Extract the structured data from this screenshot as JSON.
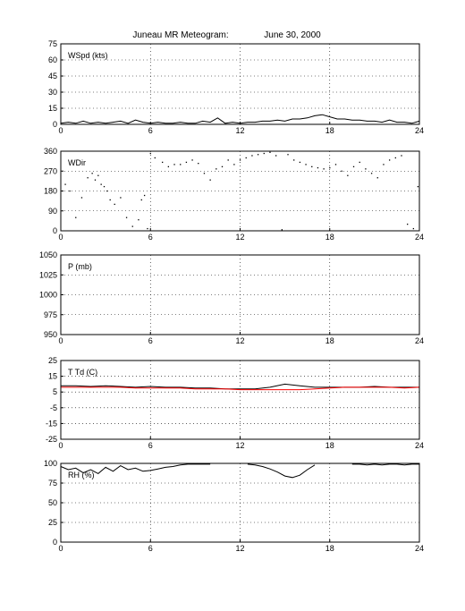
{
  "figure": {
    "title": "Juneau MR Meteogram:",
    "date": "June 30, 2000"
  },
  "chart_data": [
    {
      "type": "line",
      "label": "WSpd (kts)",
      "xlim": [
        0,
        24
      ],
      "xticks": [
        0,
        6,
        12,
        18,
        24
      ],
      "ylim": [
        0,
        75
      ],
      "yticks": [
        0,
        15,
        30,
        45,
        60,
        75
      ],
      "grid": true,
      "series": [
        {
          "color": "#000000",
          "x": [
            0,
            0.5,
            1,
            1.5,
            2,
            2.5,
            3,
            3.5,
            4,
            4.5,
            5,
            5.5,
            6,
            6.5,
            7,
            7.5,
            8,
            8.5,
            9,
            9.5,
            10,
            10.5,
            11,
            11.5,
            12,
            12.5,
            13,
            13.5,
            14,
            14.5,
            15,
            15.5,
            16,
            16.5,
            17,
            17.5,
            18,
            18.5,
            19,
            19.5,
            20,
            20.5,
            21,
            21.5,
            22,
            22.5,
            23,
            23.5,
            24
          ],
          "values": [
            1,
            2,
            1,
            3,
            1,
            2,
            1,
            2,
            3,
            1,
            4,
            2,
            1,
            2,
            1,
            1,
            2,
            1,
            1,
            3,
            2,
            6,
            1,
            2,
            1,
            2,
            2,
            3,
            3,
            4,
            3,
            5,
            5,
            6,
            8,
            9,
            7,
            5,
            5,
            4,
            4,
            3,
            3,
            2,
            4,
            2,
            2,
            1,
            3
          ]
        }
      ]
    },
    {
      "type": "scatter",
      "label": "WDir",
      "xlim": [
        0,
        24
      ],
      "xticks": [
        0,
        6,
        12,
        18,
        24
      ],
      "ylim": [
        0,
        360
      ],
      "yticks": [
        0,
        90,
        180,
        270,
        360
      ],
      "grid": true,
      "series": [
        {
          "color": "#000000",
          "x": [
            0.3,
            0.6,
            1.0,
            1.4,
            1.8,
            2.1,
            2.3,
            2.5,
            2.7,
            2.9,
            3.1,
            3.3,
            3.6,
            4.0,
            4.4,
            4.8,
            5.2,
            5.4,
            5.6,
            5.8,
            6.0,
            6.3,
            6.8,
            7.2,
            7.6,
            8.0,
            8.4,
            8.8,
            9.2,
            9.6,
            10.0,
            10.4,
            10.8,
            11.2,
            11.6,
            12.0,
            12.4,
            12.8,
            13.2,
            13.6,
            14.0,
            14.4,
            14.8,
            15.2,
            15.6,
            16.0,
            16.4,
            16.8,
            17.2,
            17.6,
            18.0,
            18.4,
            18.8,
            19.2,
            19.6,
            20.0,
            20.4,
            20.8,
            21.2,
            21.6,
            22.0,
            22.4,
            22.8,
            23.2,
            23.6,
            23.9
          ],
          "values": [
            210,
            180,
            60,
            150,
            240,
            260,
            230,
            250,
            210,
            200,
            180,
            140,
            120,
            150,
            60,
            20,
            50,
            140,
            160,
            10,
            350,
            330,
            310,
            290,
            300,
            300,
            310,
            320,
            305,
            260,
            230,
            280,
            290,
            320,
            300,
            320,
            330,
            340,
            345,
            350,
            355,
            340,
            5,
            345,
            320,
            310,
            300,
            290,
            285,
            280,
            285,
            300,
            270,
            250,
            290,
            310,
            280,
            260,
            240,
            300,
            320,
            330,
            340,
            30,
            10,
            200
          ]
        }
      ]
    },
    {
      "type": "line",
      "label": "P (mb)",
      "xlim": [
        0,
        24
      ],
      "xticks": [
        0,
        6,
        12,
        18,
        24
      ],
      "ylim": [
        950,
        1050
      ],
      "yticks": [
        950,
        975,
        1000,
        1025,
        1050
      ],
      "grid": true,
      "series": []
    },
    {
      "type": "line",
      "label": "T Td (C)",
      "xlim": [
        0,
        24
      ],
      "xticks": [
        0,
        6,
        12,
        18,
        24
      ],
      "ylim": [
        -25,
        25
      ],
      "yticks": [
        -25,
        -15,
        -5,
        5,
        15,
        25
      ],
      "grid": true,
      "series": [
        {
          "color": "#000000",
          "x": [
            0,
            1,
            2,
            3,
            4,
            5,
            6,
            7,
            8,
            9,
            10,
            11,
            12,
            13,
            14,
            15,
            16,
            17,
            18,
            19,
            20,
            21,
            22,
            23,
            24
          ],
          "values": [
            9,
            9,
            8.5,
            9,
            8.5,
            8,
            8.5,
            8,
            8,
            7.5,
            7.5,
            7,
            7,
            7,
            8,
            10,
            9,
            8,
            8,
            8,
            8,
            8.5,
            8,
            8,
            8
          ]
        },
        {
          "color": "#ff0000",
          "x": [
            0,
            1,
            2,
            3,
            4,
            5,
            6,
            7,
            8,
            9,
            10,
            11,
            12,
            13,
            14,
            15,
            16,
            17,
            18,
            19,
            20,
            21,
            22,
            23,
            24
          ],
          "values": [
            8,
            8,
            8,
            8,
            8,
            7.5,
            7.5,
            7.5,
            7.5,
            7,
            7,
            7,
            6.5,
            6.5,
            6.5,
            6.5,
            6.5,
            7,
            7.5,
            8,
            8,
            8,
            8,
            7.5,
            8
          ]
        }
      ]
    },
    {
      "type": "line",
      "label": "RH (%)",
      "xlim": [
        0,
        24
      ],
      "xticks": [
        0,
        6,
        12,
        18,
        24
      ],
      "ylim": [
        0,
        100
      ],
      "yticks": [
        0,
        25,
        50,
        75,
        100
      ],
      "grid": true,
      "series": [
        {
          "color": "#000000",
          "x": [
            0,
            0.5,
            1,
            1.5,
            2,
            2.5,
            3,
            3.5,
            4,
            4.5,
            5,
            5.5,
            6,
            6.5,
            7,
            7.5,
            8,
            8.5,
            9,
            9.5,
            10,
            10.5,
            11,
            11.5,
            12,
            12.5,
            13,
            13.5,
            14,
            14.5,
            15,
            15.5,
            16,
            16.5,
            17,
            17.5,
            18,
            18.5,
            19,
            19.5,
            20,
            20.5,
            21,
            21.5,
            22,
            22.5,
            23,
            23.5,
            24
          ],
          "values": [
            96,
            92,
            94,
            88,
            92,
            87,
            95,
            90,
            97,
            92,
            94,
            90,
            91,
            93,
            95,
            96,
            98,
            99,
            99,
            99,
            99,
            null,
            null,
            null,
            null,
            99,
            98,
            96,
            93,
            89,
            84,
            82,
            85,
            92,
            98,
            null,
            null,
            null,
            null,
            99,
            99,
            98,
            99,
            98,
            99,
            99,
            98,
            99,
            99
          ]
        }
      ]
    }
  ]
}
